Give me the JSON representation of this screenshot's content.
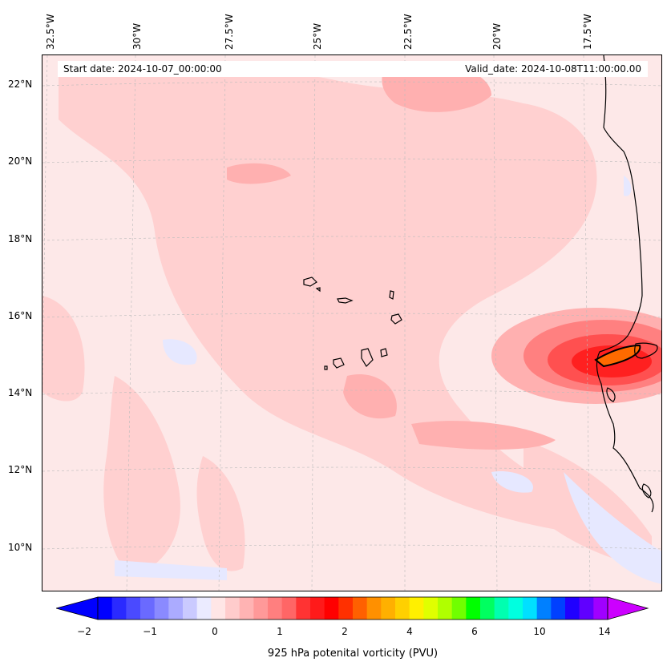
{
  "map": {
    "projection_labels": {
      "longitudes": [
        "32.5°W",
        "30°W",
        "27.5°W",
        "25°W",
        "22.5°W",
        "20°W",
        "17.5°W"
      ],
      "latitudes": [
        "22°N",
        "20°N",
        "18°N",
        "16°N",
        "14°N",
        "12°N",
        "10°N"
      ]
    },
    "start_date": "Start date: 2024-10-07_00:00:00",
    "valid_date": "Valid_date: 2024-10-08T11:00:00.00",
    "field": "925 hPa potential vorticity",
    "colors": {
      "background": "#fde8e8",
      "light_pink": "#ffd0d0",
      "pink": "#ffb0b0",
      "strong_red": "#ff4040",
      "core_red": "#ff1010",
      "orange": "#ff6a00",
      "light_blue": "#e6e8ff",
      "coast": "#000000"
    }
  },
  "colorbar": {
    "title": "925 hPa potenital vorticity (PVU)",
    "tick_labels": [
      "−2",
      "−1",
      "0",
      "1",
      "2",
      "4",
      "6",
      "10",
      "14"
    ],
    "colors": [
      "#0000ff",
      "#2a2aff",
      "#4a4aff",
      "#6a6aff",
      "#8a8aff",
      "#ababff",
      "#cacaff",
      "#ebebff",
      "#ffe6e6",
      "#ffcccc",
      "#ffb3b3",
      "#ff9999",
      "#ff7f7f",
      "#ff6666",
      "#ff3333",
      "#ff1a1a",
      "#ff0000",
      "#ff3000",
      "#ff6000",
      "#ff9000",
      "#ffb000",
      "#ffd000",
      "#fff000",
      "#e0ff00",
      "#b0ff00",
      "#70ff00",
      "#00ff00",
      "#00ff60",
      "#00ffb0",
      "#00ffe0",
      "#00e0ff",
      "#0080ff",
      "#0040ff",
      "#2000ff",
      "#6000ff",
      "#a000ff"
    ],
    "under_color": "#0000ff",
    "over_color": "#cc00ff"
  }
}
